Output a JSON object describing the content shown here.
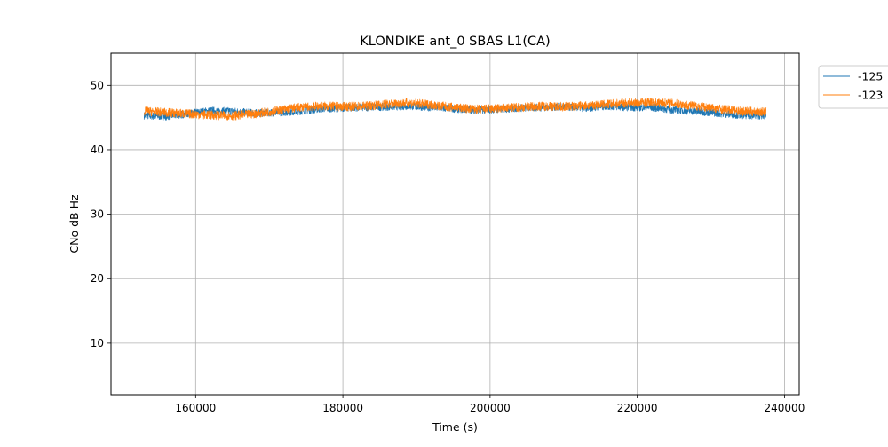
{
  "chart_data": {
    "type": "line",
    "title": "KLONDIKE ant_0 SBAS L1(CA)",
    "xlabel": "Time (s)",
    "ylabel": "CNo dB Hz",
    "xlim": [
      148500,
      242000
    ],
    "ylim": [
      2,
      55
    ],
    "xticks": [
      160000,
      180000,
      200000,
      220000,
      240000
    ],
    "yticks": [
      10,
      20,
      30,
      40,
      50
    ],
    "grid": true,
    "legend_position": "outside-top-right",
    "series": [
      {
        "name": "-125",
        "color": "#1f77b4",
        "x": [
          153000,
          156000,
          159000,
          162000,
          165000,
          168000,
          171000,
          174000,
          177000,
          180000,
          183000,
          186000,
          189000,
          192000,
          195000,
          198000,
          201000,
          204000,
          207000,
          210000,
          213000,
          216000,
          219000,
          222000,
          225000,
          228000,
          231000,
          234000,
          237500
        ],
        "y": [
          45.3,
          45.2,
          45.6,
          46.1,
          46.0,
          45.7,
          45.8,
          46.0,
          46.4,
          46.5,
          46.6,
          46.7,
          46.8,
          46.6,
          46.4,
          46.2,
          46.3,
          46.5,
          46.6,
          46.7,
          46.5,
          46.8,
          46.6,
          46.6,
          46.2,
          46.0,
          45.7,
          45.4,
          45.3
        ],
        "noise": 0.6
      },
      {
        "name": "-123",
        "color": "#ff7f0e",
        "x": [
          153000,
          156000,
          159000,
          162000,
          165000,
          168000,
          171000,
          174000,
          177000,
          180000,
          183000,
          186000,
          189000,
          192000,
          195000,
          198000,
          201000,
          204000,
          207000,
          210000,
          213000,
          216000,
          219000,
          222000,
          225000,
          228000,
          231000,
          234000,
          237500
        ],
        "y": [
          46.0,
          45.8,
          45.6,
          45.4,
          45.3,
          45.6,
          46.1,
          46.6,
          46.8,
          46.7,
          46.8,
          47.1,
          47.3,
          47.0,
          46.6,
          46.3,
          46.4,
          46.6,
          46.8,
          46.7,
          46.9,
          47.1,
          47.3,
          47.4,
          47.2,
          46.8,
          46.4,
          46.0,
          45.9
        ],
        "noise": 0.7
      }
    ]
  }
}
